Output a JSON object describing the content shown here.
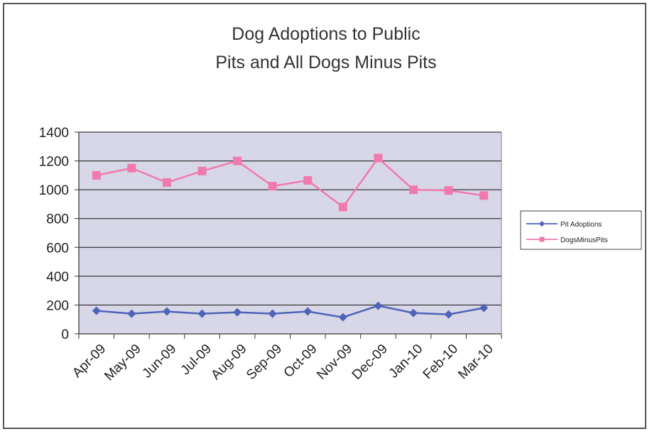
{
  "chart_data": {
    "type": "line",
    "title_line1": "Dog Adoptions to Public",
    "title_line2": "Pits and All Dogs Minus Pits",
    "categories": [
      "Apr-09",
      "May-09",
      "Jun-09",
      "Jul-09",
      "Aug-09",
      "Sep-09",
      "Oct-09",
      "Nov-09",
      "Dec-09",
      "Jan-10",
      "Feb-10",
      "Mar-10"
    ],
    "series": [
      {
        "name": "Pit Adoptions",
        "color": "#4f63b8",
        "marker": "diamond",
        "values": [
          160,
          140,
          155,
          140,
          150,
          140,
          155,
          115,
          195,
          145,
          135,
          180
        ]
      },
      {
        "name": "DogsMinusPits",
        "color": "#f07ab0",
        "marker": "square",
        "values": [
          1100,
          1150,
          1050,
          1130,
          1200,
          1025,
          1065,
          880,
          1220,
          1000,
          995,
          960
        ]
      }
    ],
    "ylim": [
      0,
      1400
    ],
    "yticks": [
      0,
      200,
      400,
      600,
      800,
      1000,
      1200,
      1400
    ],
    "plot_background": "#d7d7e8",
    "grid": true,
    "legend_position": "right"
  }
}
